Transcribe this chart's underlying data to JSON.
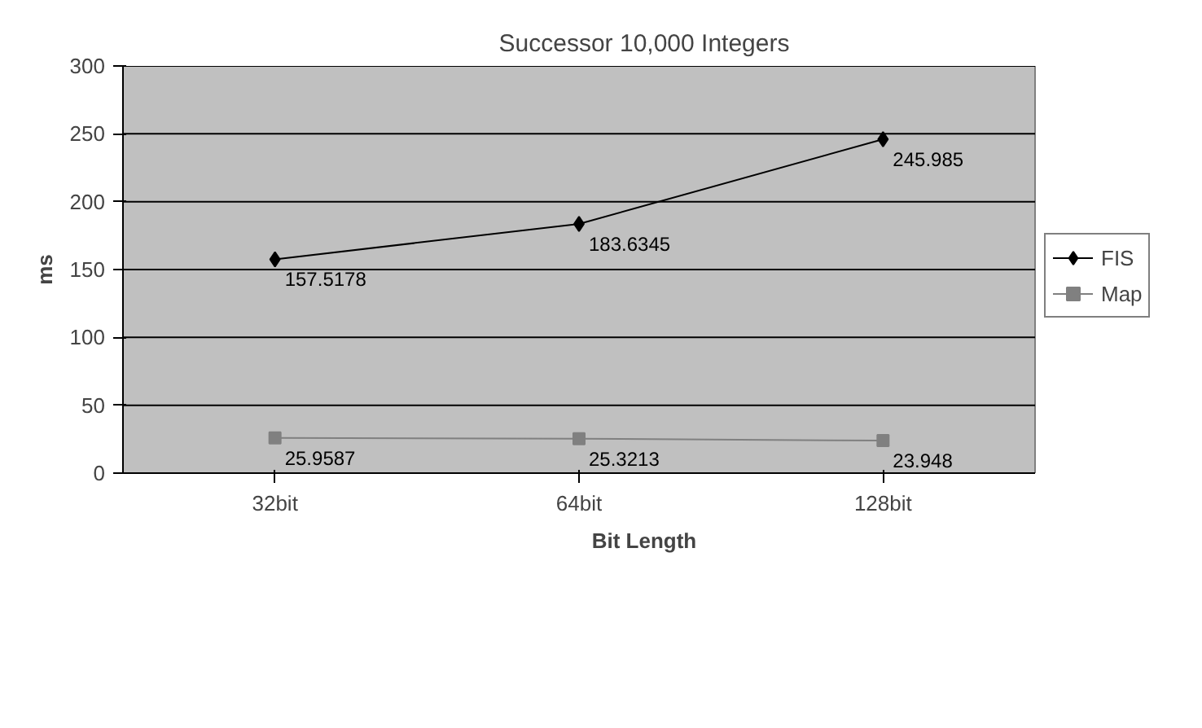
{
  "chart_data": {
    "type": "line",
    "title": "Successor 10,000 Integers",
    "xlabel": "Bit Length",
    "ylabel": "ms",
    "categories": [
      "32bit",
      "64bit",
      "128bit"
    ],
    "series": [
      {
        "name": "FIS",
        "color": "#000000",
        "marker": "diamond",
        "values": [
          157.5178,
          183.6345,
          245.985
        ]
      },
      {
        "name": "Map",
        "color": "#808080",
        "marker": "square",
        "values": [
          25.9587,
          25.3213,
          23.948
        ]
      }
    ],
    "ylim": [
      0,
      300
    ],
    "yticks": [
      0,
      50,
      100,
      150,
      200,
      250,
      300
    ],
    "grid": "y",
    "legend": "right",
    "data_labels": true,
    "line_style": "solid"
  }
}
